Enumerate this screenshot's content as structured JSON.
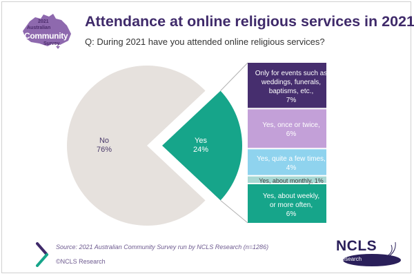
{
  "logo": {
    "year": "2021",
    "line1": "Australian",
    "line2": "Community",
    "line3": "Survey"
  },
  "title": "Attendance at online religious services in 2021",
  "subtitle": "Q: During 2021 have you attended online religious services?",
  "colors": {
    "no": "#e6e1dd",
    "yes": "#16a58a",
    "events": "#462e6e",
    "once_twice": "#c3a0d8",
    "few_times": "#8fd3ee",
    "monthly": "#a8d8d3",
    "weekly": "#16a58a",
    "connector": "#b0b0b0"
  },
  "chart_data": {
    "type": "pie",
    "slices": [
      {
        "label": "No",
        "value": 76,
        "value_label": "76%"
      },
      {
        "label": "Yes",
        "value": 24,
        "value_label": "24%"
      }
    ],
    "breakdown": {
      "of": "Yes",
      "segments": [
        {
          "label": "Only for events such as\nweddings, funerals,\nbaptisms, etc.,",
          "value": 7,
          "value_label": "7%"
        },
        {
          "label": "Yes, once or twice,",
          "value": 6,
          "value_label": "6%"
        },
        {
          "label": "Yes, quite a few times,",
          "value": 4,
          "value_label": "4%"
        },
        {
          "label": "Yes, about monthly,",
          "value": 1,
          "value_label": "1%"
        },
        {
          "label": "Yes, about weekly,\nor more often,",
          "value": 6,
          "value_label": "6%"
        }
      ]
    }
  },
  "source": "Source: 2021 Australian Community Survey run by NCLS Research (n=1286)",
  "copyright": "©NCLS Research",
  "ncls_logo": {
    "name": "NCLS",
    "sub": "research"
  }
}
